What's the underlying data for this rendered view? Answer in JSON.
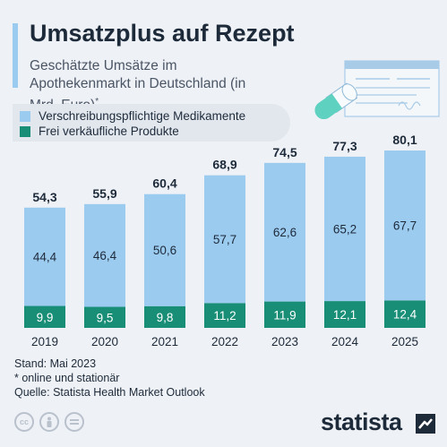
{
  "header": {
    "title": "Umsatzplus auf Rezept",
    "subtitle": "Geschätzte Umsätze im Apothekenmarkt in Deutschland (in Mrd. Euro)",
    "subtitle_mark": "*"
  },
  "legend": {
    "items": [
      {
        "label": "Verschreibungspflichtige Medikamente",
        "color": "#9ccbf0"
      },
      {
        "label": "Frei verkäufliche Produkte",
        "color": "#198e76"
      }
    ]
  },
  "chart_data": {
    "type": "bar",
    "stacked": true,
    "categories": [
      "2019",
      "2020",
      "2021",
      "2022",
      "2023",
      "2024",
      "2025"
    ],
    "series": [
      {
        "name": "Frei verkäufliche Produkte",
        "values": [
          "9,9",
          "9,5",
          "9,8",
          "11,2",
          "11,9",
          "12,1",
          "12,4"
        ],
        "numeric": [
          9.9,
          9.5,
          9.8,
          11.2,
          11.9,
          12.1,
          12.4
        ],
        "color": "#198e76"
      },
      {
        "name": "Verschreibungspflichtige Medikamente",
        "values": [
          "44,4",
          "46,4",
          "50,6",
          "57,7",
          "62,6",
          "65,2",
          "67,7"
        ],
        "numeric": [
          44.4,
          46.4,
          50.6,
          57.7,
          62.6,
          65.2,
          67.7
        ],
        "color": "#9ccbf0"
      }
    ],
    "totals": [
      "54,3",
      "55,9",
      "60,4",
      "68,9",
      "74,5",
      "77,3",
      "80,1"
    ],
    "totals_numeric": [
      54.3,
      55.9,
      60.4,
      68.9,
      74.5,
      77.3,
      80.1
    ],
    "ylim": [
      0,
      80.1
    ],
    "grid": false,
    "legend_position": "top-left"
  },
  "notes": {
    "stand": "Stand: Mai 2023",
    "footnote": "* online und stationär",
    "source": "Quelle: Statista Health Market Outlook"
  },
  "license": {
    "icons": [
      "cc-icon",
      "person-icon",
      "equals-icon"
    ]
  },
  "brand": {
    "name": "statista"
  }
}
